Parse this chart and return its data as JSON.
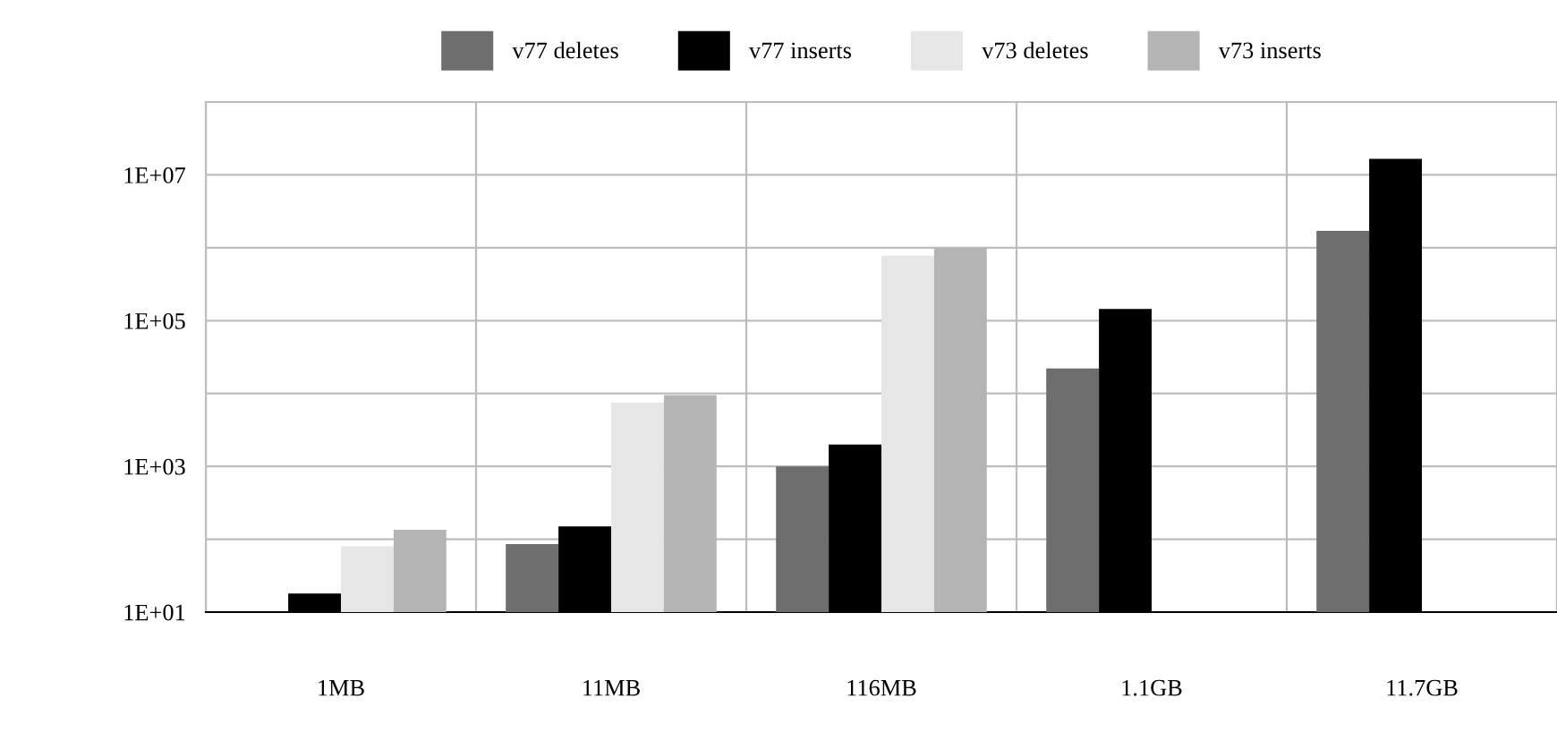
{
  "chart_data": {
    "type": "bar",
    "categories": [
      "1MB",
      "11MB",
      "116MB",
      "1.1GB",
      "11.7GB"
    ],
    "series": [
      {
        "name": "v77 deletes",
        "color": "#6e6e6e",
        "values": [
          null,
          86,
          1000,
          22000,
          1700000
        ]
      },
      {
        "name": "v77 inserts",
        "color": "#000000",
        "values": [
          18,
          150,
          2000,
          145000,
          16600000
        ]
      },
      {
        "name": "v73 deletes",
        "color": "#e6e6e6",
        "values": [
          80,
          7500,
          780000,
          null,
          null
        ]
      },
      {
        "name": "v73 inserts",
        "color": "#b4b4b4",
        "values": [
          135,
          9500,
          1000000,
          null,
          null
        ]
      }
    ],
    "log": "y",
    "ylim": [
      10,
      100000000
    ],
    "yticks": [
      {
        "value": 10,
        "label": "1E+01"
      },
      {
        "value": 100,
        "label": null
      },
      {
        "value": 1000,
        "label": "1E+03"
      },
      {
        "value": 10000,
        "label": null
      },
      {
        "value": 100000,
        "label": "1E+05"
      },
      {
        "value": 1000000,
        "label": null
      },
      {
        "value": 10000000,
        "label": "1E+07"
      },
      {
        "value": 100000000,
        "label": null
      }
    ],
    "grid": true,
    "legend": "top"
  }
}
